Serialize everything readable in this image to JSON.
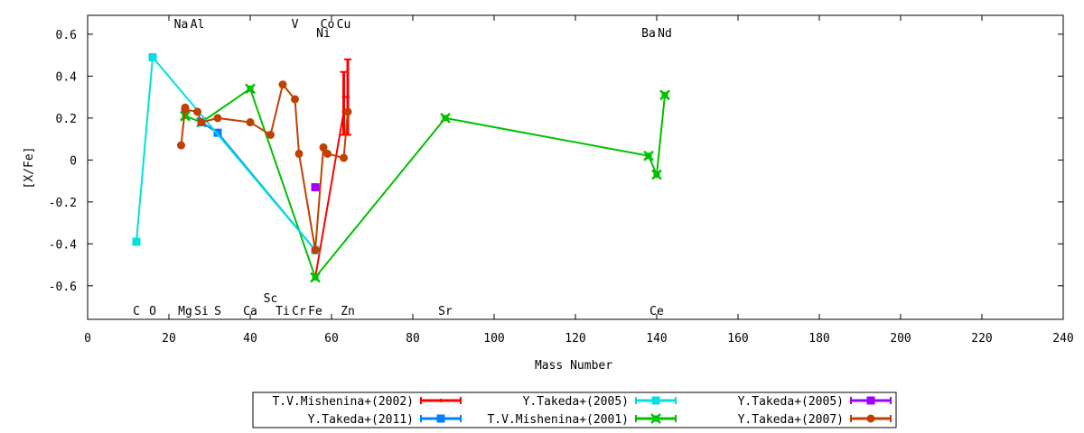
{
  "chart_data": {
    "type": "line",
    "title": "",
    "xlabel": "Mass Number",
    "ylabel": "[X/Fe]",
    "xlim": [
      0,
      240
    ],
    "ylim": [
      -0.76,
      0.69
    ],
    "xticks": [
      0,
      20,
      40,
      60,
      80,
      100,
      120,
      140,
      160,
      180,
      200,
      220,
      240
    ],
    "yticks": [
      -0.6,
      -0.4,
      -0.2,
      0,
      0.2,
      0.4,
      0.6
    ],
    "ytick_labels": [
      "-0.6",
      "-0.4",
      "-0.2",
      "0",
      "0.2",
      "0.4",
      "0.6"
    ],
    "grid": false,
    "legend_position": "bottom",
    "element_labels": [
      {
        "text": "Na",
        "x": 23,
        "row": "top1"
      },
      {
        "text": "Al",
        "x": 27,
        "row": "top1"
      },
      {
        "text": "V",
        "x": 51,
        "row": "top1"
      },
      {
        "text": "Co",
        "x": 59,
        "row": "top1"
      },
      {
        "text": "Cu",
        "x": 63,
        "row": "top1"
      },
      {
        "text": "Ni",
        "x": 58,
        "row": "top2"
      },
      {
        "text": "Ba",
        "x": 138,
        "row": "top2"
      },
      {
        "text": "Nd",
        "x": 142,
        "row": "top2"
      },
      {
        "text": "Sc",
        "x": 45,
        "row": "bottom1"
      },
      {
        "text": "C",
        "x": 12,
        "row": "bottom2"
      },
      {
        "text": "O",
        "x": 16,
        "row": "bottom2"
      },
      {
        "text": "Mg",
        "x": 24,
        "row": "bottom2"
      },
      {
        "text": "Si",
        "x": 28,
        "row": "bottom2"
      },
      {
        "text": "S",
        "x": 32,
        "row": "bottom2"
      },
      {
        "text": "Ca",
        "x": 40,
        "row": "bottom2"
      },
      {
        "text": "Ti",
        "x": 48,
        "row": "bottom2"
      },
      {
        "text": "Cr",
        "x": 52,
        "row": "bottom2"
      },
      {
        "text": "Fe",
        "x": 56,
        "row": "bottom2"
      },
      {
        "text": "Zn",
        "x": 64,
        "row": "bottom2"
      },
      {
        "text": "Sr",
        "x": 88,
        "row": "bottom2"
      },
      {
        "text": "Ce",
        "x": 140,
        "row": "bottom2"
      }
    ],
    "series": [
      {
        "name": "T.V.Mishenina+(2002)",
        "color": "#ff0000",
        "marker": "errorbar",
        "points": [
          [
            56,
            -0.56
          ],
          [
            63,
            0.23
          ],
          [
            63,
            0.3
          ],
          [
            64,
            0.3
          ]
        ],
        "errors": [
          [
            63,
            0.12,
            0.42
          ],
          [
            64,
            0.12,
            0.48
          ]
        ]
      },
      {
        "name": "T.V.Mishenina+(2001)",
        "color": "#00c000",
        "marker": "x",
        "points": [
          [
            24,
            0.21
          ],
          [
            28,
            0.18
          ],
          [
            40,
            0.34
          ],
          [
            56,
            -0.56
          ],
          [
            88,
            0.2
          ],
          [
            138,
            0.02
          ],
          [
            140,
            -0.07
          ],
          [
            142,
            0.31
          ]
        ]
      },
      {
        "name": "Y.Takeda+(2011)",
        "color": "#0080ff",
        "marker": "square",
        "points": [
          [
            28,
            0.18
          ],
          [
            32,
            0.13
          ],
          [
            56,
            -0.43
          ]
        ]
      },
      {
        "name": "Y.Takeda+(2005)",
        "color": "#a000ff",
        "marker": "square",
        "points": [
          [
            56,
            -0.13
          ]
        ]
      },
      {
        "name": "Y.Takeda+(2005)",
        "color": "#00e0e0",
        "marker": "square",
        "points": [
          [
            12,
            -0.39
          ],
          [
            16,
            0.49
          ],
          [
            56,
            -0.43
          ]
        ]
      },
      {
        "name": "Y.Takeda+(2007)",
        "color": "#c04000",
        "marker": "circle",
        "points": [
          [
            23,
            0.07
          ],
          [
            24,
            0.25
          ],
          [
            24,
            0.24
          ],
          [
            27,
            0.23
          ],
          [
            28,
            0.18
          ],
          [
            32,
            0.2
          ],
          [
            40,
            0.18
          ],
          [
            45,
            0.12
          ],
          [
            48,
            0.36
          ],
          [
            51,
            0.29
          ],
          [
            52,
            0.03
          ],
          [
            56,
            -0.43
          ],
          [
            58,
            0.06
          ],
          [
            59,
            0.03
          ],
          [
            63,
            0.01
          ],
          [
            64,
            0.23
          ]
        ]
      }
    ]
  }
}
